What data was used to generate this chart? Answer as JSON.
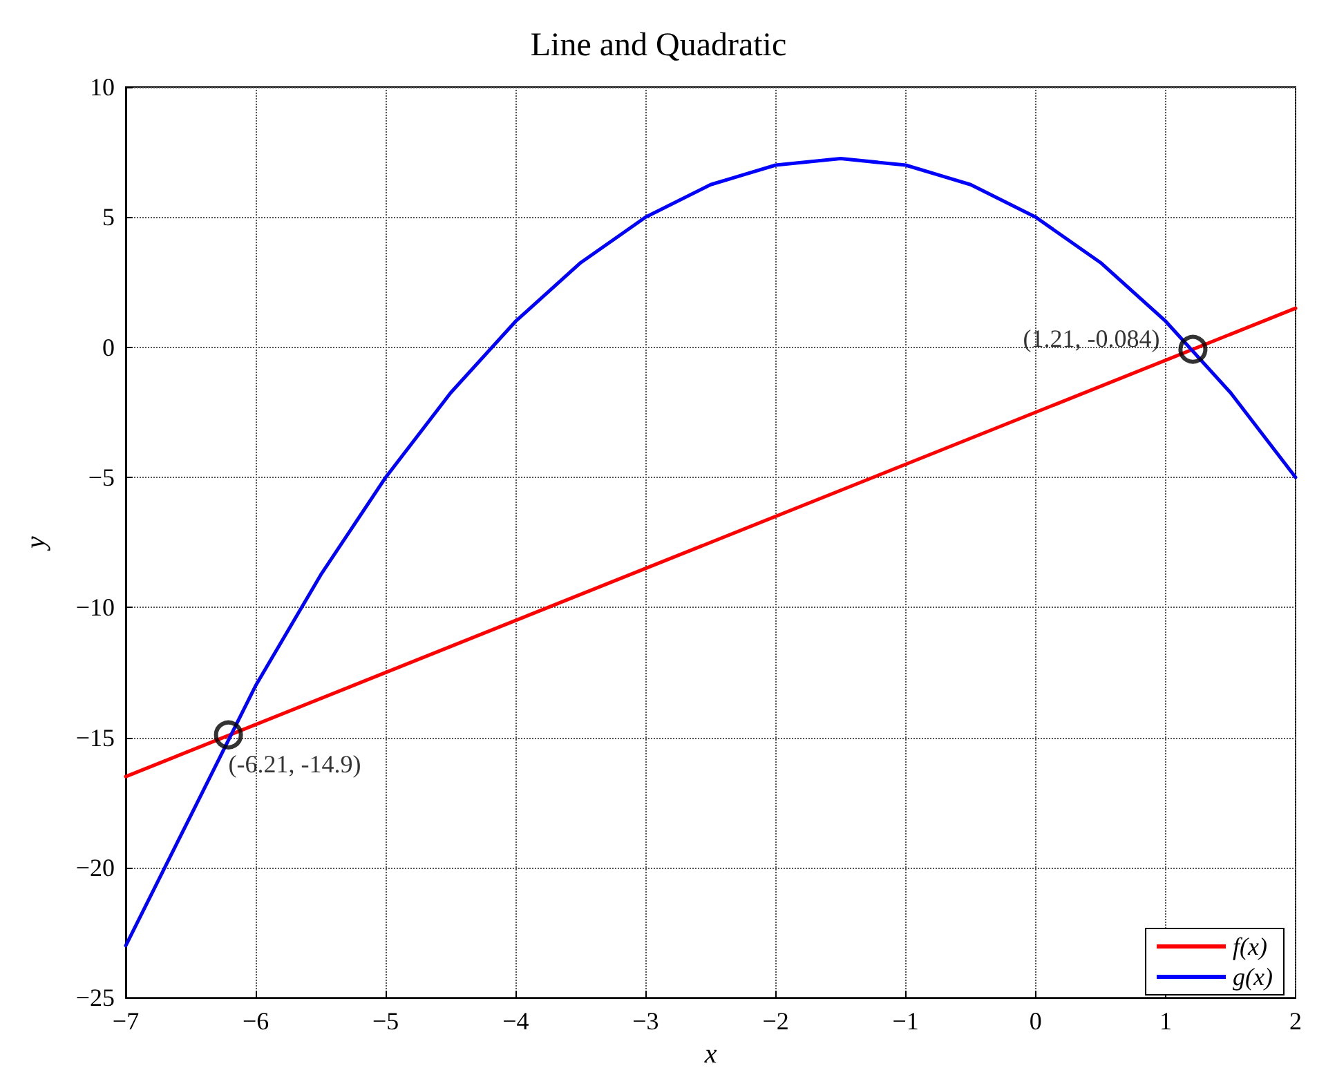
{
  "chart_data": {
    "type": "line",
    "title": "Line and Quadratic",
    "xlabel": "x",
    "ylabel": "y",
    "series": [
      {
        "name": "f(x)",
        "color": "#ff0000",
        "x": [
          -7,
          2
        ],
        "values": [
          -16.5,
          1.5
        ]
      },
      {
        "name": "g(x)",
        "color": "#0000ff",
        "x": [
          -7,
          -6.5,
          -6,
          -5.5,
          -5,
          -4.5,
          -4,
          -3.5,
          -3,
          -2.5,
          -2,
          -1.5,
          -1,
          -0.5,
          0,
          0.5,
          1,
          1.5,
          2
        ],
        "values": [
          -23,
          -18,
          -13,
          -8.75,
          -5,
          -1.75,
          1,
          3.25,
          5,
          6.25,
          7,
          7.25,
          7,
          6.25,
          5,
          3.25,
          1,
          -1.75,
          -5
        ]
      },
      {
        "type": "scatter",
        "color": "#000000",
        "marker": "circle",
        "x": [
          -6.21,
          1.21
        ],
        "values": [
          -14.9,
          -0.08
        ]
      }
    ],
    "annotations": [
      {
        "text": "(1.21, -0.084)",
        "x": 1.21,
        "y": -0.084
      },
      {
        "text": "(-6.21, -14.9)",
        "x": -6.21,
        "y": -14.9
      }
    ],
    "xlim": [
      -7,
      2
    ],
    "xticks": [
      {
        "value": -7,
        "label": "−7"
      },
      {
        "value": -6,
        "label": "−6"
      },
      {
        "value": -5,
        "label": "−5"
      },
      {
        "value": -4,
        "label": "−4"
      },
      {
        "value": -3,
        "label": "−3"
      },
      {
        "value": -2,
        "label": "−2"
      },
      {
        "value": -1,
        "label": "−1"
      },
      0,
      1,
      2
    ],
    "ylim": [
      -25,
      10
    ],
    "yticks": [
      {
        "value": -25,
        "label": "−25"
      },
      {
        "value": -20,
        "label": "−20"
      },
      {
        "value": -15,
        "label": "−15"
      },
      {
        "value": -10,
        "label": "−10"
      },
      {
        "value": -5,
        "label": "−5"
      },
      0,
      5,
      10
    ],
    "grid": true,
    "legend": "bottom right",
    "line_style": "solid"
  }
}
